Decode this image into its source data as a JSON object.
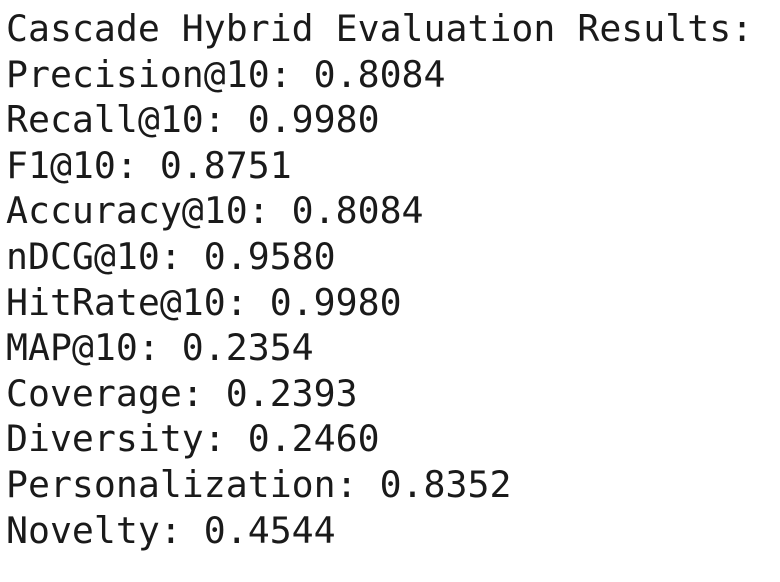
{
  "output": {
    "header": "Cascade Hybrid Evaluation Results:",
    "lines": [
      "Precision@10: 0.8084",
      "Recall@10: 0.9980",
      "F1@10: 0.8751",
      "Accuracy@10: 0.8084",
      "nDCG@10: 0.9580",
      "HitRate@10: 0.9980",
      "MAP@10: 0.2354",
      "Coverage: 0.2393",
      "Diversity: 0.2460",
      "Personalization: 0.8352",
      "Novelty: 0.4544"
    ]
  }
}
